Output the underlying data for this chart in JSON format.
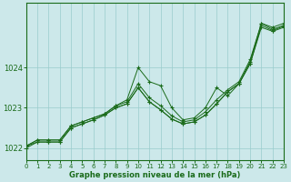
{
  "title": "Graphe pression niveau de la mer (hPa)",
  "background_color": "#cce8ea",
  "grid_color": "#99cccc",
  "line_color": "#1a6b1a",
  "xlim": [
    0,
    23
  ],
  "ylim": [
    1021.7,
    1025.6
  ],
  "yticks": [
    1022,
    1023,
    1024
  ],
  "xticks": [
    0,
    1,
    2,
    3,
    4,
    5,
    6,
    7,
    8,
    9,
    10,
    11,
    12,
    13,
    14,
    15,
    16,
    17,
    18,
    19,
    20,
    21,
    22,
    23
  ],
  "series": [
    [
      1022.05,
      1022.2,
      1022.2,
      1022.2,
      1022.55,
      1022.65,
      1022.75,
      1022.85,
      1023.05,
      1023.2,
      1024.0,
      1023.65,
      1023.55,
      1023.0,
      1022.7,
      1022.75,
      1023.0,
      1023.5,
      1023.3,
      1023.6,
      1024.15,
      1025.1,
      1024.95,
      1025.05
    ],
    [
      1022.05,
      1022.2,
      1022.2,
      1022.2,
      1022.55,
      1022.65,
      1022.75,
      1022.85,
      1023.05,
      1023.15,
      1023.6,
      1023.25,
      1023.05,
      1022.8,
      1022.65,
      1022.7,
      1022.9,
      1023.2,
      1023.45,
      1023.65,
      1024.2,
      1025.1,
      1025.0,
      1025.1
    ],
    [
      1022.0,
      1022.15,
      1022.15,
      1022.15,
      1022.5,
      1022.6,
      1022.7,
      1022.82,
      1023.0,
      1023.1,
      1023.5,
      1023.15,
      1022.95,
      1022.72,
      1022.6,
      1022.65,
      1022.82,
      1023.1,
      1023.4,
      1023.6,
      1024.1,
      1025.0,
      1024.9,
      1025.0
    ],
    [
      1022.05,
      1022.15,
      1022.15,
      1022.15,
      1022.5,
      1022.6,
      1022.7,
      1022.82,
      1023.0,
      1023.1,
      1023.5,
      1023.15,
      1022.95,
      1022.72,
      1022.6,
      1022.65,
      1022.82,
      1023.1,
      1023.4,
      1023.6,
      1024.1,
      1025.05,
      1024.92,
      1025.03
    ]
  ]
}
